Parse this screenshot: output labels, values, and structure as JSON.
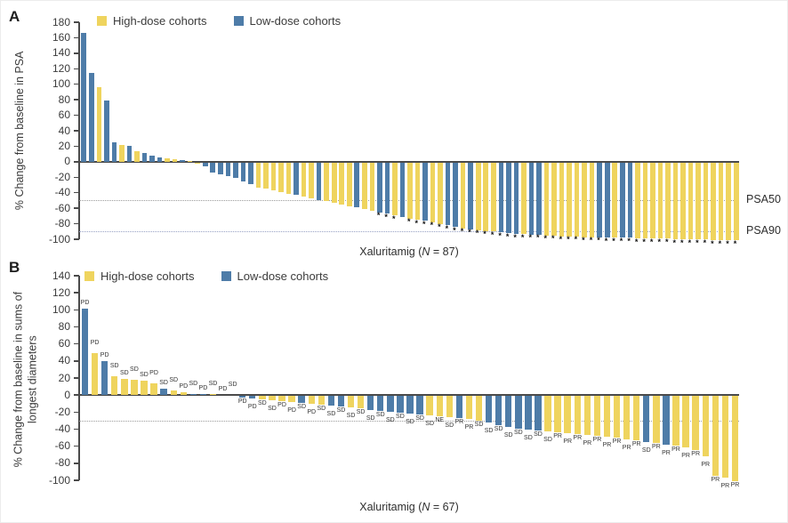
{
  "figure": {
    "legend": {
      "high_label": "High-dose cohorts",
      "low_label": "Low-dose cohorts"
    },
    "colors": {
      "high_dose": "#EFD45E",
      "low_dose": "#4E7CA8",
      "axis": "#4a4a4a",
      "text": "#3b3b3b",
      "threshold_gray": "#9b9b9b",
      "psa90_line": "#97A1C4",
      "marker": "#111111"
    }
  },
  "chart_data": [
    {
      "type": "bar",
      "panel_label": "A",
      "ylabel_lines": [
        "% Change from baseline in PSA"
      ],
      "xlabel_pre": "Xaluritamig (",
      "xlabel_n": "N",
      "xlabel_post": " = 87)",
      "n": 87,
      "ylim": [
        -100,
        180
      ],
      "ytick_step": 20,
      "grid": false,
      "legend_position": "top",
      "thresholds": [
        {
          "value": -50,
          "label": "PSA50",
          "color_key": "threshold_gray"
        },
        {
          "value": -90,
          "label": "PSA90",
          "color_key": "psa90_line"
        }
      ],
      "bars_key": [
        "pct_change_from_baseline",
        "cohort(H=high-dose,L=low-dose)",
        "asterisk_marker(1=yes)"
      ],
      "bars": [
        [
          166,
          "L",
          0
        ],
        [
          115,
          "L",
          0
        ],
        [
          96,
          "H",
          0
        ],
        [
          79,
          "L",
          0
        ],
        [
          25,
          "L",
          0
        ],
        [
          22,
          "H",
          0
        ],
        [
          20,
          "L",
          0
        ],
        [
          14,
          "H",
          0
        ],
        [
          11,
          "L",
          0
        ],
        [
          8,
          "L",
          0
        ],
        [
          6,
          "L",
          0
        ],
        [
          4,
          "H",
          0
        ],
        [
          3,
          "H",
          0
        ],
        [
          2,
          "L",
          0
        ],
        [
          1,
          "H",
          0
        ],
        [
          -1,
          "H",
          0
        ],
        [
          -5,
          "L",
          0
        ],
        [
          -13,
          "L",
          0
        ],
        [
          -15,
          "L",
          0
        ],
        [
          -17,
          "L",
          0
        ],
        [
          -20,
          "L",
          0
        ],
        [
          -24,
          "L",
          0
        ],
        [
          -28,
          "L",
          0
        ],
        [
          -32,
          "H",
          0
        ],
        [
          -34,
          "H",
          0
        ],
        [
          -36,
          "H",
          0
        ],
        [
          -38,
          "H",
          0
        ],
        [
          -40,
          "H",
          0
        ],
        [
          -42,
          "L",
          0
        ],
        [
          -44,
          "H",
          0
        ],
        [
          -46,
          "H",
          0
        ],
        [
          -48,
          "L",
          0
        ],
        [
          -50,
          "H",
          0
        ],
        [
          -52,
          "H",
          0
        ],
        [
          -54,
          "H",
          0
        ],
        [
          -56,
          "H",
          0
        ],
        [
          -58,
          "L",
          0
        ],
        [
          -60,
          "H",
          0
        ],
        [
          -62,
          "H",
          0
        ],
        [
          -64,
          "L",
          1
        ],
        [
          -66,
          "L",
          1
        ],
        [
          -68,
          "H",
          1
        ],
        [
          -70,
          "L",
          0
        ],
        [
          -72,
          "H",
          1
        ],
        [
          -74,
          "H",
          1
        ],
        [
          -75,
          "L",
          1
        ],
        [
          -77,
          "H",
          1
        ],
        [
          -79,
          "H",
          1
        ],
        [
          -81,
          "L",
          1
        ],
        [
          -83,
          "L",
          1
        ],
        [
          -85,
          "H",
          1
        ],
        [
          -86,
          "L",
          1
        ],
        [
          -87,
          "H",
          1
        ],
        [
          -88,
          "H",
          1
        ],
        [
          -89,
          "H",
          1
        ],
        [
          -90,
          "L",
          1
        ],
        [
          -91,
          "L",
          1
        ],
        [
          -92,
          "L",
          1
        ],
        [
          -92,
          "H",
          1
        ],
        [
          -93,
          "L",
          1
        ],
        [
          -93,
          "L",
          1
        ],
        [
          -94,
          "H",
          1
        ],
        [
          -94,
          "H",
          1
        ],
        [
          -95,
          "H",
          1
        ],
        [
          -95,
          "H",
          1
        ],
        [
          -95,
          "H",
          1
        ],
        [
          -96,
          "H",
          1
        ],
        [
          -96,
          "H",
          1
        ],
        [
          -96,
          "L",
          1
        ],
        [
          -97,
          "L",
          1
        ],
        [
          -97,
          "H",
          1
        ],
        [
          -97,
          "L",
          1
        ],
        [
          -97,
          "L",
          1
        ],
        [
          -98,
          "H",
          1
        ],
        [
          -98,
          "H",
          1
        ],
        [
          -98,
          "H",
          1
        ],
        [
          -98,
          "H",
          1
        ],
        [
          -98,
          "H",
          1
        ],
        [
          -99,
          "H",
          1
        ],
        [
          -99,
          "H",
          1
        ],
        [
          -99,
          "H",
          1
        ],
        [
          -99,
          "H",
          1
        ],
        [
          -99,
          "H",
          1
        ],
        [
          -100,
          "H",
          1
        ],
        [
          -100,
          "H",
          1
        ],
        [
          -100,
          "H",
          1
        ],
        [
          -100,
          "H",
          1
        ]
      ]
    },
    {
      "type": "bar",
      "panel_label": "B",
      "ylabel_lines": [
        "% Change from baseline in sums of",
        "longest diameters"
      ],
      "xlabel_pre": "Xaluritamig (",
      "xlabel_n": "N",
      "xlabel_post": " = 67)",
      "n": 67,
      "ylim": [
        -100,
        140
      ],
      "ytick_step": 20,
      "grid": false,
      "legend_position": "top",
      "thresholds": [
        {
          "value": -30,
          "label": "",
          "color_key": "threshold_gray"
        }
      ],
      "bars_key": [
        "pct_change_from_baseline",
        "cohort(H=high-dose,L=low-dose)",
        "response_label"
      ],
      "bars": [
        [
          101,
          "L",
          "PD"
        ],
        [
          49,
          "H",
          "PD"
        ],
        [
          40,
          "L",
          "PD"
        ],
        [
          22,
          "H",
          "SD"
        ],
        [
          19,
          "H",
          "SD"
        ],
        [
          18,
          "H",
          "SD"
        ],
        [
          17,
          "H",
          "SD"
        ],
        [
          14,
          "H",
          "PD"
        ],
        [
          8,
          "L",
          "SD"
        ],
        [
          5,
          "H",
          "SD"
        ],
        [
          3,
          "H",
          "PD"
        ],
        [
          1,
          "L",
          "SD"
        ],
        [
          1,
          "L",
          "PD"
        ],
        [
          1,
          "H",
          "SD"
        ],
        [
          0,
          "L",
          "PD"
        ],
        [
          0,
          "H",
          "SD"
        ],
        [
          -2,
          "L",
          "PD"
        ],
        [
          -3,
          "L",
          "PD"
        ],
        [
          -4,
          "H",
          "SD"
        ],
        [
          -5,
          "H",
          "SD"
        ],
        [
          -6,
          "H",
          "PD"
        ],
        [
          -7,
          "H",
          "PD"
        ],
        [
          -8,
          "L",
          "SD"
        ],
        [
          -9,
          "H",
          "PD"
        ],
        [
          -10,
          "H",
          "SD"
        ],
        [
          -11,
          "L",
          "SD"
        ],
        [
          -12,
          "L",
          "SD"
        ],
        [
          -13,
          "H",
          "SD"
        ],
        [
          -14,
          "H",
          "SD"
        ],
        [
          -17,
          "L",
          "SD"
        ],
        [
          -18,
          "L",
          "SD"
        ],
        [
          -19,
          "L",
          "SD"
        ],
        [
          -20,
          "L",
          "SD"
        ],
        [
          -21,
          "L",
          "SD"
        ],
        [
          -22,
          "L",
          "SD"
        ],
        [
          -23,
          "H",
          "SD"
        ],
        [
          -24,
          "H",
          "NE"
        ],
        [
          -25,
          "H",
          "SD"
        ],
        [
          -26,
          "L",
          "PR"
        ],
        [
          -27,
          "H",
          "PR"
        ],
        [
          -29,
          "H",
          "SD"
        ],
        [
          -31,
          "L",
          "SD"
        ],
        [
          -34,
          "L",
          "SD"
        ],
        [
          -36,
          "L",
          "SD"
        ],
        [
          -38,
          "L",
          "SD"
        ],
        [
          -39,
          "L",
          "SD"
        ],
        [
          -41,
          "L",
          "SD"
        ],
        [
          -42,
          "H",
          "SD"
        ],
        [
          -43,
          "H",
          "PR"
        ],
        [
          -44,
          "H",
          "PR"
        ],
        [
          -45,
          "H",
          "PR"
        ],
        [
          -46,
          "H",
          "PR"
        ],
        [
          -47,
          "H",
          "PR"
        ],
        [
          -48,
          "H",
          "PR"
        ],
        [
          -49,
          "H",
          "PR"
        ],
        [
          -51,
          "H",
          "PR"
        ],
        [
          -52,
          "H",
          "PR"
        ],
        [
          -54,
          "L",
          "SD"
        ],
        [
          -55,
          "H",
          "PR"
        ],
        [
          -57,
          "L",
          "PR"
        ],
        [
          -58,
          "H",
          "PR"
        ],
        [
          -60,
          "H",
          "PR"
        ],
        [
          -63,
          "H",
          "PR"
        ],
        [
          -71,
          "H",
          "PR"
        ],
        [
          -94,
          "H",
          "PR"
        ],
        [
          -96,
          "H",
          "PR"
        ],
        [
          -100,
          "H",
          "PR"
        ]
      ]
    }
  ]
}
